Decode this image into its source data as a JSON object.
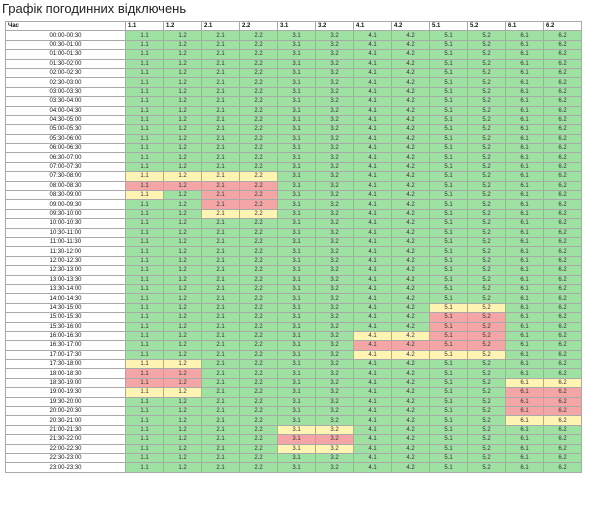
{
  "title": "Графік погодинних відключень",
  "colors": {
    "on": "#9fe0a3",
    "maybe": "#fff4b3",
    "off": "#f4a6a6"
  },
  "legend_codes": {
    "g": "on",
    "y": "maybe",
    "r": "off"
  },
  "header": {
    "time_label": "Час"
  },
  "groups": [
    "1.1",
    "1.2",
    "2.1",
    "2.2",
    "3.1",
    "3.2",
    "4.1",
    "4.2",
    "5.1",
    "5.2",
    "6.1",
    "6.2"
  ],
  "slots": [
    "00:00-00:30",
    "00:30-01:00",
    "01:00-01:30",
    "01:30-02:00",
    "02:00-02:30",
    "02:30-03:00",
    "03:00-03:30",
    "03:30-04:00",
    "04:00-04:30",
    "04:30-05:00",
    "05:00-05:30",
    "05:30-06:00",
    "06:00-06:30",
    "06:30-07:00",
    "07:00-07:30",
    "07:30-08:00",
    "08:00-08:30",
    "08:30-09:00",
    "09:00-09:30",
    "09:30-10:00",
    "10:00-10:30",
    "10:30-11:00",
    "11:00-11:30",
    "11:30-12:00",
    "12:00-12:30",
    "12:30-13:00",
    "13:00-13:30",
    "13:30-14:00",
    "14:00-14:30",
    "14:30-15:00",
    "15:00-15:30",
    "15:30-16:00",
    "16:00-16:30",
    "16:30-17:00",
    "17:00-17:30",
    "17:30-18:00",
    "18:00-18:30",
    "18:30-19:00",
    "19:00-19:30",
    "19:30-20:00",
    "20:00-20:30",
    "20:30-21:00",
    "21:00-21:30",
    "21:30-22:00",
    "22:00-22:30",
    "22:30-23:00",
    "23:00-23:30"
  ],
  "status": [
    "gggggggggggg",
    "gggggggggggg",
    "gggggggggggg",
    "gggggggggggg",
    "gggggggggggg",
    "gggggggggggg",
    "gggggggggggg",
    "gggggggggggg",
    "gggggggggggg",
    "gggggggggggg",
    "gggggggggggg",
    "gggggggggggg",
    "gggggggggggg",
    "gggggggggggg",
    "gggggggggggg",
    "yyyygggggggg",
    "rrrrgggggggg",
    "ygrrgggggggg",
    "ggrrgggggggg",
    "ggyygggggggg",
    "gggggggggggg",
    "gggggggggggg",
    "gggggggggggg",
    "gggggggggggg",
    "gggggggggggg",
    "gggggggggggg",
    "gggggggggggg",
    "gggggggggggg",
    "gggggggggggg",
    "ggggggggyygg",
    "ggggggggrrgg",
    "ggggggggrrgg",
    "ggggggyyrrgg",
    "ggggggrrrrgg",
    "ggggggyyyygg",
    "yygggggggggg",
    "rrgggggggggg",
    "rrggggggggyy",
    "yyggggggggrr",
    "ggggggggggrr",
    "ggggggggggrr",
    "ggggggggggyy",
    "ggggyygggggg",
    "ggggrrgggggg",
    "ggggyygggggg",
    "gggggggggggg",
    "gggggggggggg"
  ]
}
